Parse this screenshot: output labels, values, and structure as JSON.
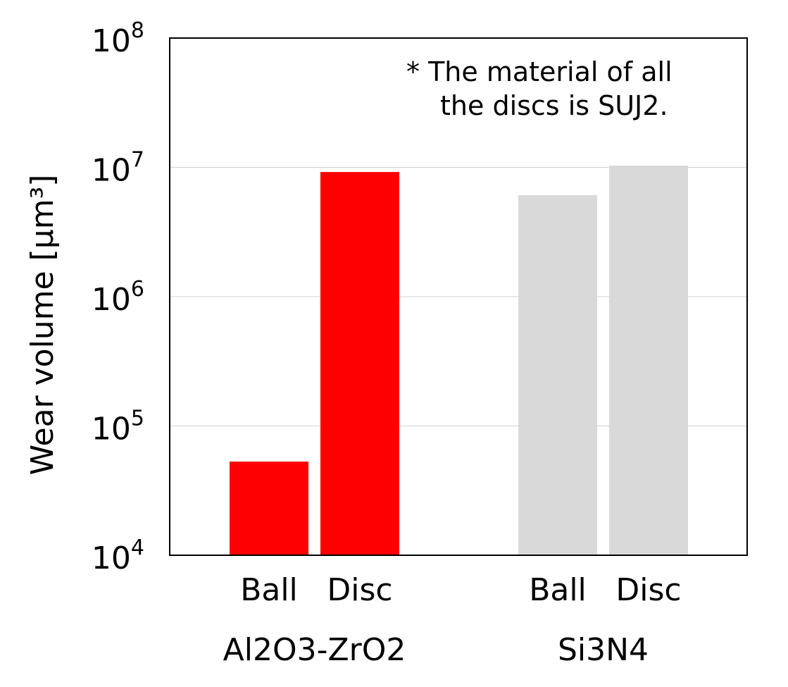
{
  "chart_data": {
    "type": "bar",
    "yscale": "log",
    "ylim": [
      10000,
      100000000
    ],
    "ylabel": "Wear volume [μm³]",
    "y_ticks": [
      {
        "base": "10",
        "exp": "4"
      },
      {
        "base": "10",
        "exp": "5"
      },
      {
        "base": "10",
        "exp": "6"
      },
      {
        "base": "10",
        "exp": "7"
      },
      {
        "base": "10",
        "exp": "8"
      }
    ],
    "note": [
      "* The material of all",
      "the discs is SUJ2."
    ],
    "grid": true,
    "groups": [
      {
        "label_parts": [
          "Al",
          "2",
          "O",
          "3",
          "-Zr",
          "O",
          "2"
        ],
        "bars": [
          {
            "label": "Ball",
            "value": 53000,
            "color": "#ff0000"
          },
          {
            "label": "Disc",
            "value": 9200000,
            "color": "#ff0000"
          }
        ]
      },
      {
        "label_parts": [
          "Si",
          "3",
          "N",
          "4"
        ],
        "bars": [
          {
            "label": "Ball",
            "value": 6100000,
            "color": "#d9d9d9"
          },
          {
            "label": "Disc",
            "value": 10300000,
            "color": "#d9d9d9"
          }
        ]
      }
    ]
  }
}
